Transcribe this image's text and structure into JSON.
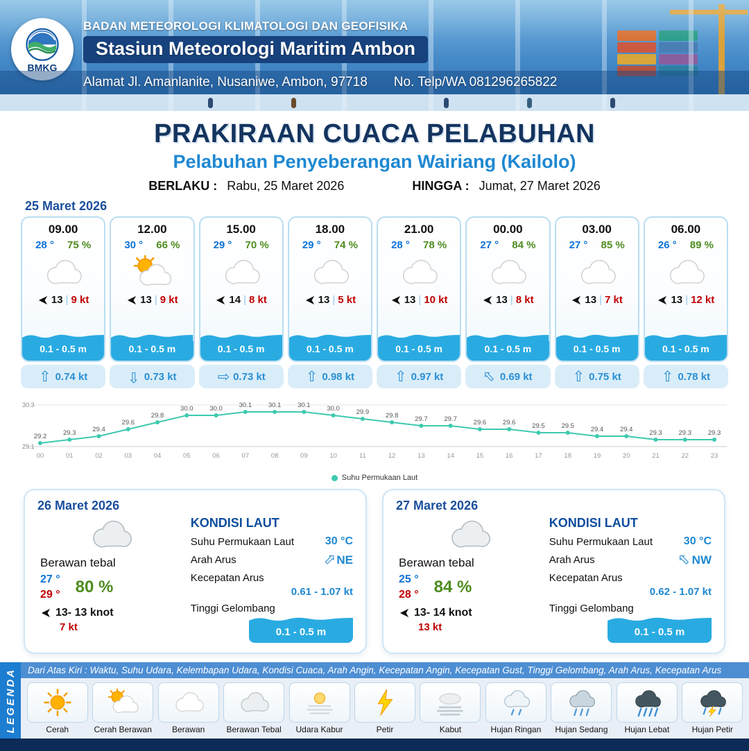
{
  "header": {
    "logo_text": "BMKG",
    "org_name": "BADAN METEOROLOGI KLIMATOLOGI DAN GEOFISIKA",
    "station_name": "Stasiun Meteorologi Maritim Ambon",
    "address": "Alamat Jl. Amanlanite, Nusaniwe, Ambon, 97718",
    "contact": "No. Telp/WA  081296265822"
  },
  "title": {
    "main": "PRAKIRAAN CUACA PELABUHAN",
    "subtitle": "Pelabuhan Penyeberangan Wairiang (Kailolo)",
    "valid_from_label": "BERLAKU :",
    "valid_from": "Rabu, 25 Maret 2026",
    "valid_to_label": "HINGGA :",
    "valid_to": "Jumat, 27 Maret 2026"
  },
  "hourly": {
    "date": "25 Maret 2026",
    "cards": [
      {
        "time": "09.00",
        "temp": "28 °",
        "humidity": "75 %",
        "icon": "berawan",
        "wind_speed": "13",
        "wind_gust": "9 kt",
        "wave": "0.1 - 0.5 m",
        "current_speed": "0.74 kt",
        "current_dir": "N"
      },
      {
        "time": "12.00",
        "temp": "30 °",
        "humidity": "66 %",
        "icon": "cerah-berawan",
        "wind_speed": "13",
        "wind_gust": "9 kt",
        "wave": "0.1 - 0.5 m",
        "current_speed": "0.73 kt",
        "current_dir": "S"
      },
      {
        "time": "15.00",
        "temp": "29 °",
        "humidity": "70 %",
        "icon": "berawan",
        "wind_speed": "14",
        "wind_gust": "8 kt",
        "wave": "0.1 - 0.5 m",
        "current_speed": "0.73 kt",
        "current_dir": "E"
      },
      {
        "time": "18.00",
        "temp": "29 °",
        "humidity": "74 %",
        "icon": "berawan",
        "wind_speed": "13",
        "wind_gust": "5 kt",
        "wave": "0.1 - 0.5 m",
        "current_speed": "0.98 kt",
        "current_dir": "N"
      },
      {
        "time": "21.00",
        "temp": "28 °",
        "humidity": "78 %",
        "icon": "berawan",
        "wind_speed": "13",
        "wind_gust": "10 kt",
        "wave": "0.1 - 0.5 m",
        "current_speed": "0.97 kt",
        "current_dir": "N"
      },
      {
        "time": "00.00",
        "temp": "27 °",
        "humidity": "84 %",
        "icon": "berawan",
        "wind_speed": "13",
        "wind_gust": "8 kt",
        "wave": "0.1 - 0.5 m",
        "current_speed": "0.69 kt",
        "current_dir": "NW"
      },
      {
        "time": "03.00",
        "temp": "27 °",
        "humidity": "85 %",
        "icon": "berawan",
        "wind_speed": "13",
        "wind_gust": "7 kt",
        "wave": "0.1 - 0.5 m",
        "current_speed": "0.75 kt",
        "current_dir": "N"
      },
      {
        "time": "06.00",
        "temp": "26 °",
        "humidity": "89 %",
        "icon": "berawan",
        "wind_speed": "13",
        "wind_gust": "12 kt",
        "wave": "0.1 - 0.5 m",
        "current_speed": "0.78 kt",
        "current_dir": "N"
      }
    ]
  },
  "chart_data": {
    "type": "line",
    "legend": "Suhu Permukaan Laut",
    "x": [
      "00",
      "01",
      "02",
      "03",
      "04",
      "05",
      "06",
      "07",
      "08",
      "09",
      "10",
      "11",
      "12",
      "13",
      "14",
      "15",
      "16",
      "17",
      "18",
      "19",
      "20",
      "21",
      "22",
      "23"
    ],
    "values": [
      29.2,
      29.3,
      29.4,
      29.6,
      29.8,
      30.0,
      30.0,
      30.1,
      30.1,
      30.1,
      30.0,
      29.9,
      29.8,
      29.7,
      29.7,
      29.6,
      29.6,
      29.5,
      29.5,
      29.4,
      29.4,
      29.3,
      29.3,
      29.3
    ],
    "ylim": [
      29.1,
      30.3
    ],
    "line_color": "#3ec9b0",
    "grid": true,
    "legend_position": "bottom"
  },
  "daily": [
    {
      "date": "26 Maret 2026",
      "condition": "Berawan tebal",
      "icon": "berawan-tebal",
      "temp_min": "27 °",
      "temp_max": "29 °",
      "humidity": "80 %",
      "wind": "13- 13 knot",
      "gust": "7 kt",
      "sea": {
        "heading": "KONDISI LAUT",
        "sst_label": "Suhu Permukaan Laut",
        "sst": "30 °C",
        "current_dir_label": "Arah Arus",
        "current_dir": "NE",
        "current_speed_label": "Kecepatan Arus",
        "current_speed": "0.61 - 1.07 kt",
        "wave_label": "Tinggi Gelombang",
        "wave": "0.1 - 0.5 m"
      }
    },
    {
      "date": "27 Maret 2026",
      "condition": "Berawan tebal",
      "icon": "berawan-tebal",
      "temp_min": "25 °",
      "temp_max": "28 °",
      "humidity": "84 %",
      "wind": "13- 14 knot",
      "gust": "13 kt",
      "sea": {
        "heading": "KONDISI LAUT",
        "sst_label": "Suhu Permukaan Laut",
        "sst": "30 °C",
        "current_dir_label": "Arah Arus",
        "current_dir": "NW",
        "current_speed_label": "Kecepatan Arus",
        "current_speed": "0.62 - 1.07 kt",
        "wave_label": "Tinggi Gelombang",
        "wave": "0.1 - 0.5 m"
      }
    }
  ],
  "legend": {
    "sidebar": "LEGENDA",
    "note": "Dari Atas Kiri : Waktu, Suhu Udara, Kelembapan Udara, Kondisi Cuaca, Arah Angin, Kecepatan Angin, Kecepatan Gust, Tinggi Gelombang, Arah Arus, Kecepatan Arus",
    "items": [
      {
        "label": "Cerah",
        "icon": "cerah"
      },
      {
        "label": "Cerah Berawan",
        "icon": "cerah-berawan"
      },
      {
        "label": "Berawan",
        "icon": "berawan"
      },
      {
        "label": "Berawan Tebal",
        "icon": "berawan-tebal"
      },
      {
        "label": "Udara Kabur",
        "icon": "udara-kabur"
      },
      {
        "label": "Petir",
        "icon": "petir"
      },
      {
        "label": "Kabut",
        "icon": "kabut"
      },
      {
        "label": "Hujan Ringan",
        "icon": "hujan-ringan"
      },
      {
        "label": "Hujan Sedang",
        "icon": "hujan-sedang"
      },
      {
        "label": "Hujan Lebat",
        "icon": "hujan-lebat"
      },
      {
        "label": "Hujan Petir",
        "icon": "hujan-petir"
      }
    ]
  },
  "colors": {
    "header_blue": "#3579bd",
    "dark_navy": "#14345f",
    "accent_blue": "#1e88d2",
    "temp_blue": "#0b72d8",
    "humidity_green": "#4e8c1f",
    "gust_red": "#c00000",
    "wave_blue": "#29abe2",
    "chart_line": "#3ec9b0",
    "footer_navy": "#0c2b57"
  }
}
